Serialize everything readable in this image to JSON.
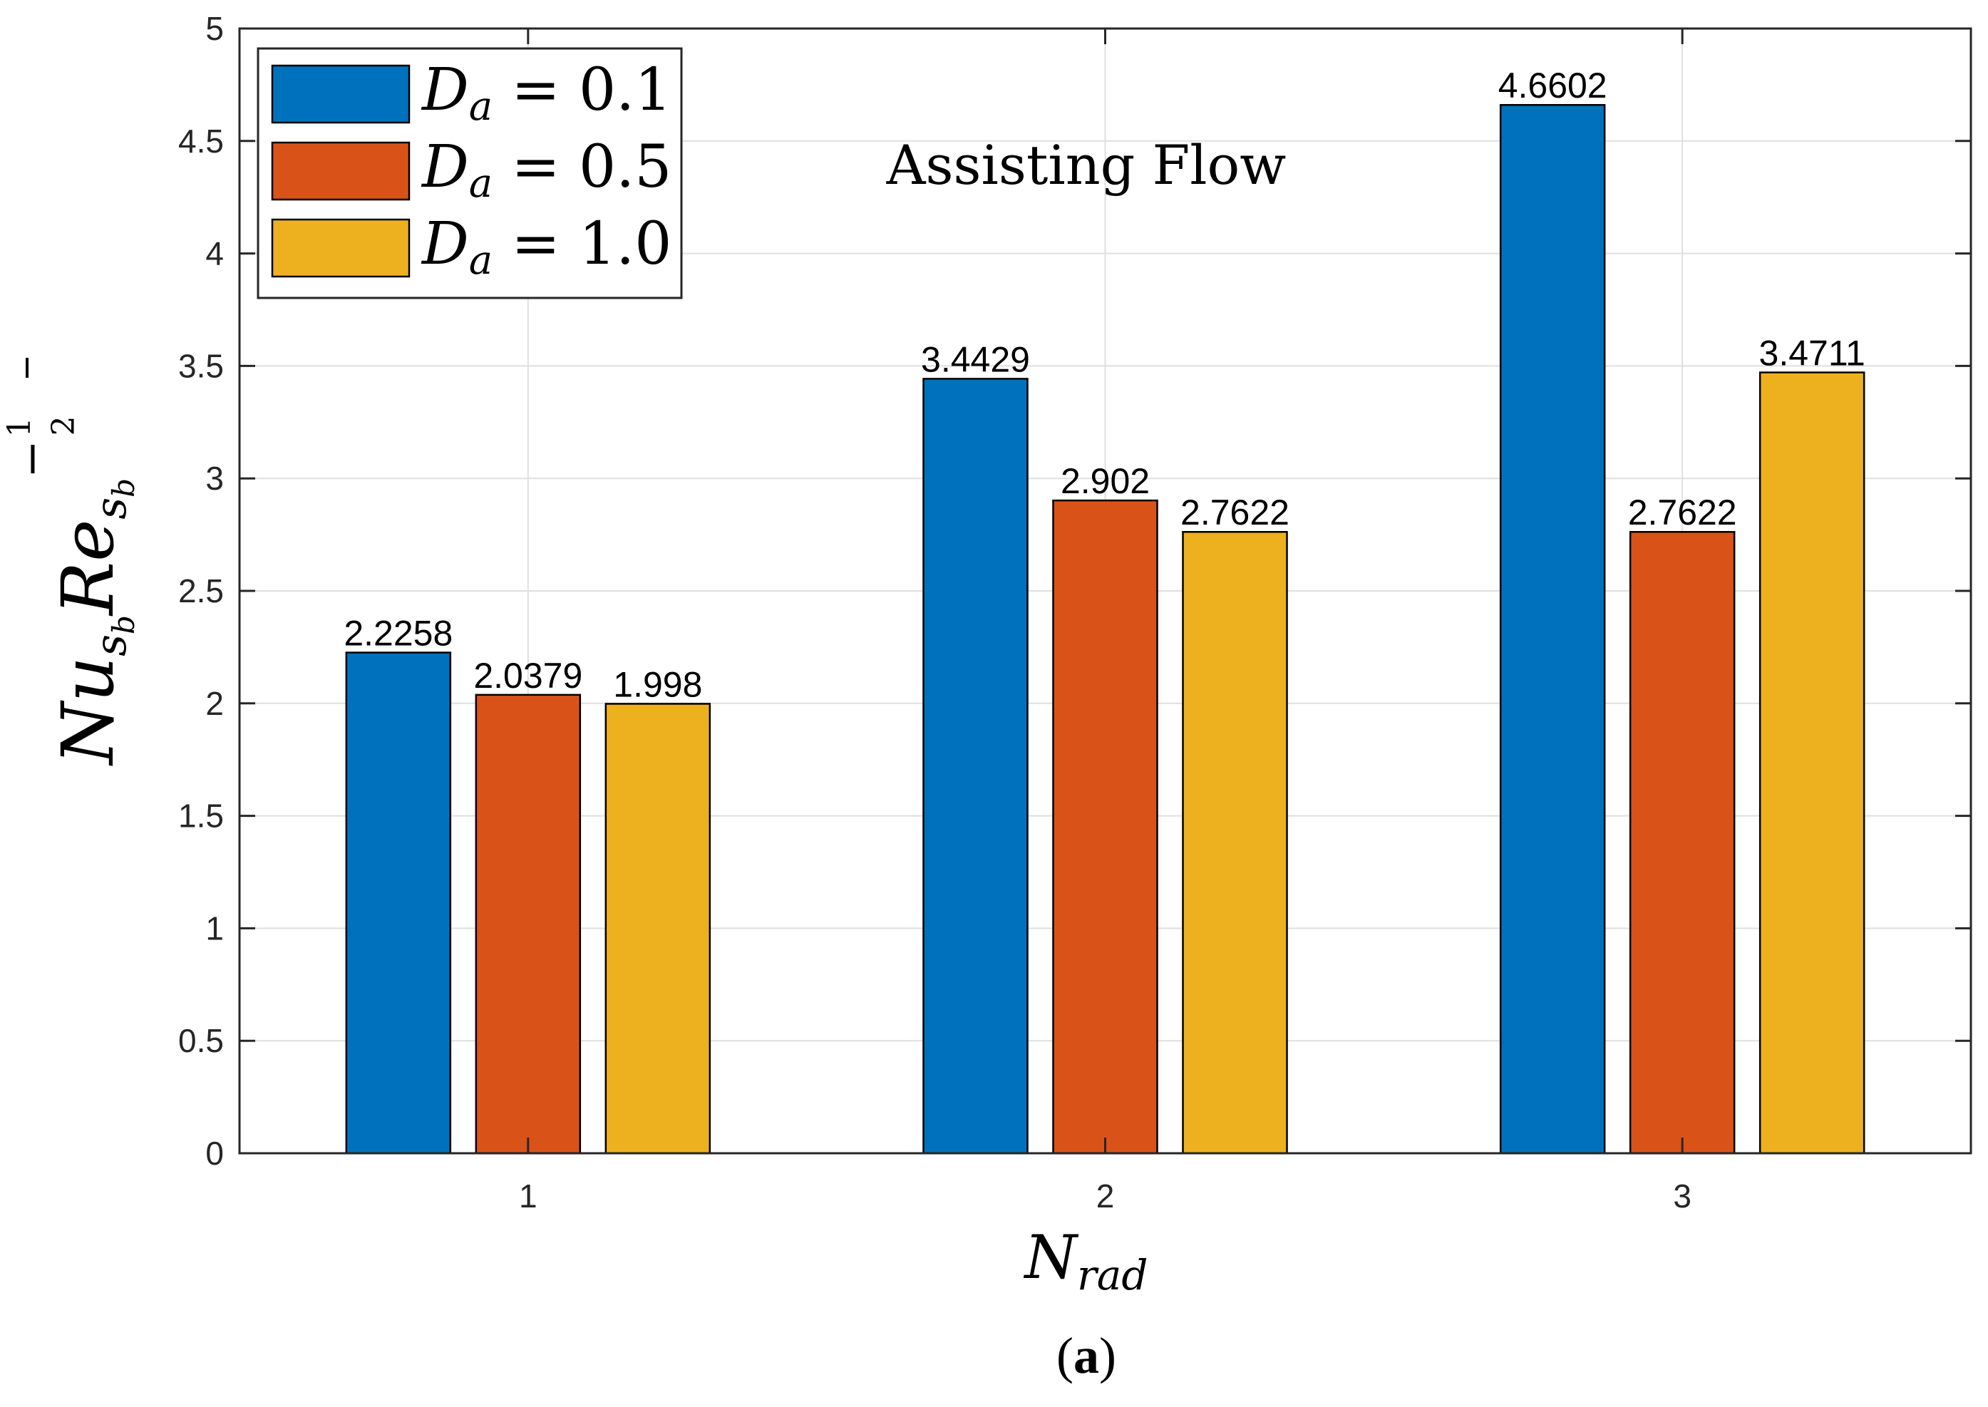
{
  "chart_data": {
    "type": "bar",
    "categories": [
      "1",
      "2",
      "3"
    ],
    "series": [
      {
        "name": "D_a = 0.1",
        "legend_var": "D",
        "legend_sub": "a",
        "legend_rest": " = 0.1",
        "color": "#0072BD",
        "values": [
          2.2258,
          3.4429,
          4.6602
        ],
        "labels": [
          "2.2258",
          "3.4429",
          "4.6602"
        ]
      },
      {
        "name": "D_a = 0.5",
        "legend_var": "D",
        "legend_sub": "a",
        "legend_rest": " = 0.5",
        "color": "#D95319",
        "values": [
          2.0379,
          2.902,
          2.7622
        ],
        "labels": [
          "2.0379",
          "2.902",
          "2.7622"
        ]
      },
      {
        "name": "D_a = 1.0",
        "legend_var": "D",
        "legend_sub": "a",
        "legend_rest": " = 1.0",
        "color": "#EDB120",
        "values": [
          1.998,
          2.7622,
          3.4711
        ],
        "labels": [
          "1.998",
          "2.7622",
          "3.4711"
        ]
      }
    ],
    "ylim": [
      0,
      5
    ],
    "yticks": [
      "0",
      "0.5",
      "1",
      "1.5",
      "2",
      "2.5",
      "3",
      "3.5",
      "4",
      "4.5",
      "5"
    ],
    "xlabel": {
      "base": "N",
      "sub": "rad"
    },
    "ylabel": {
      "nu": "Nu",
      "nu_sub": "s",
      "nu_subsub": "b",
      "re": "Re",
      "re_sub": "s",
      "re_subsub": "b",
      "exp_sign": "−",
      "exp_num": "1",
      "exp_den": "2"
    },
    "annotation": "Assisting Flow",
    "legend_position": "top-left",
    "grid": true
  },
  "caption": {
    "open": "(",
    "letter": "a",
    "close": ")"
  }
}
